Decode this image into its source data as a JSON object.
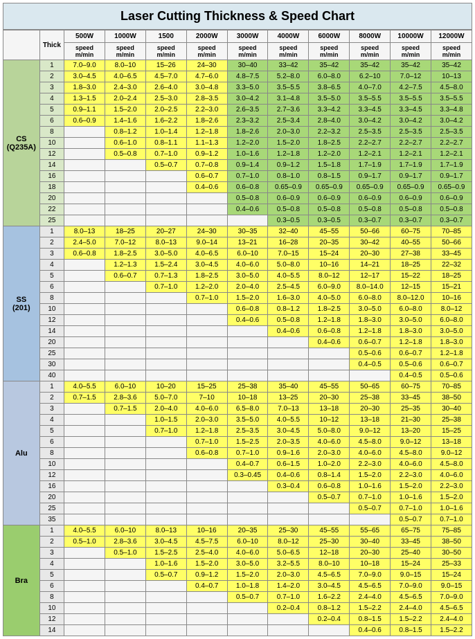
{
  "title": "Laser Cutting Thickness & Speed Chart",
  "thick_label": "Thick",
  "sub_label": "speed m/min",
  "powers": [
    "500W",
    "1000W",
    "1500",
    "2000W",
    "3000W",
    "4000W",
    "6000W",
    "8000W",
    "10000W",
    "12000W"
  ],
  "colors": {
    "title_bg": "#dae8ef",
    "mat_cs": "#b8d49a",
    "mat_ss": "#a6c2e0",
    "mat_alu": "#b8c8e0",
    "mat_bra": "#9acd6e",
    "thick_cs": "#d9e8c8",
    "thick_ss": "#e8e8e8",
    "thick_alu": "#e8e8e8",
    "thick_bra": "#e8e8e8",
    "fill_yellow": "#ffff66",
    "fill_green": "#a8d878",
    "fill_empty": "#f5f5f5"
  },
  "materials": [
    {
      "name": "CS (Q235A)",
      "mat_bg": "#b8d49a",
      "thick_bg": "#d9e8c8",
      "default_fill": "green",
      "yellow_cols": [
        0,
        1,
        2,
        3
      ],
      "rows": [
        {
          "t": "1",
          "v": [
            "7.0–9.0",
            "8.0–10",
            "15–26",
            "24–30",
            "30–40",
            "33–42",
            "35–42",
            "35–42",
            "35–42",
            "35–42"
          ]
        },
        {
          "t": "2",
          "v": [
            "3.0–4.5",
            "4.0–6.5",
            "4.5–7.0",
            "4.7–6.0",
            "4.8–7.5",
            "5.2–8.0",
            "6.0–8.0",
            "6.2–10",
            "7.0–12",
            "10–13"
          ]
        },
        {
          "t": "3",
          "v": [
            "1.8–3.0",
            "2.4–3.0",
            "2.6–4.0",
            "3.0–4.8",
            "3.3–5.0",
            "3.5–5.5",
            "3.8–6.5",
            "4.0–7.0",
            "4.2–7.5",
            "4.5–8.0"
          ]
        },
        {
          "t": "4",
          "v": [
            "1.3–1.5",
            "2.0–2.4",
            "2.5–3.0",
            "2.8–3.5",
            "3.0–4.2",
            "3.1–4.8",
            "3.5–5.0",
            "3.5–5.5",
            "3.5–5.5",
            "3.5–5.5"
          ]
        },
        {
          "t": "5",
          "v": [
            "0.9–1.1",
            "1.5–2.0",
            "2.0–2.5",
            "2.2–3.0",
            "2.6–3.5",
            "2.7–3.6",
            "3.3–4.2",
            "3.3–4.5",
            "3.3–4.5",
            "3.3–4.8"
          ]
        },
        {
          "t": "6",
          "v": [
            "0.6–0.9",
            "1.4–1.6",
            "1.6–2.2",
            "1.8–2.6",
            "2.3–3.2",
            "2.5–3.4",
            "2.8–4.0",
            "3.0–4.2",
            "3.0–4.2",
            "3.0–4.2"
          ]
        },
        {
          "t": "8",
          "v": [
            "",
            "0.8–1.2",
            "1.0–1.4",
            "1.2–1.8",
            "1.8–2.6",
            "2.0–3.0",
            "2.2–3.2",
            "2.5–3.5",
            "2.5–3.5",
            "2.5–3.5"
          ]
        },
        {
          "t": "10",
          "v": [
            "",
            "0.6–1.0",
            "0.8–1.1",
            "1.1–1.3",
            "1.2–2.0",
            "1.5–2.0",
            "1.8–2.5",
            "2.2–2.7",
            "2.2–2.7",
            "2.2–2.7"
          ]
        },
        {
          "t": "12",
          "v": [
            "",
            "0.5–0.8",
            "0.7–1.0",
            "0.9–1.2",
            "1.0–1.6",
            "1.2–1.8",
            "1.2–2.0",
            "1.2–2.1",
            "1.2–2.1",
            "1.2–2.1"
          ]
        },
        {
          "t": "14",
          "v": [
            "",
            "",
            "0.5–0.7",
            "0.7–0.8",
            "0.9–1.4",
            "0.9–1.2",
            "1.5–1.8",
            "1.7–1.9",
            "1.7–1.9",
            "1.7–1.9"
          ]
        },
        {
          "t": "16",
          "v": [
            "",
            "",
            "",
            "0.6–0.7",
            "0.7–1.0",
            "0.8–1.0",
            "0.8–1.5",
            "0.9–1.7",
            "0.9–1.7",
            "0.9–1.7"
          ]
        },
        {
          "t": "18",
          "v": [
            "",
            "",
            "",
            "0.4–0.6",
            "0.6–0.8",
            "0.65–0.9",
            "0.65–0.9",
            "0.65–0.9",
            "0.65–0.9",
            "0.65–0.9"
          ]
        },
        {
          "t": "20",
          "v": [
            "",
            "",
            "",
            "",
            "0.5–0.8",
            "0.6–0.9",
            "0.6–0.9",
            "0.6–0.9",
            "0.6–0.9",
            "0.6–0.9"
          ]
        },
        {
          "t": "22",
          "v": [
            "",
            "",
            "",
            "",
            "0.4–0.6",
            "0.5–0.8",
            "0.5–0.8",
            "0.5–0.8",
            "0.5–0.8",
            "0.5–0.8"
          ]
        },
        {
          "t": "25",
          "v": [
            "",
            "",
            "",
            "",
            "",
            "0.3–0.5",
            "0.3–0.5",
            "0.3–0.7",
            "0.3–0.7",
            "0.3–0.7"
          ]
        }
      ]
    },
    {
      "name": "SS (201)",
      "mat_bg": "#a6c2e0",
      "thick_bg": "#e8e8e8",
      "default_fill": "yellow",
      "rows": [
        {
          "t": "1",
          "v": [
            "8.0–13",
            "18–25",
            "20–27",
            "24–30",
            "30–35",
            "32–40",
            "45–55",
            "50–66",
            "60–75",
            "70–85"
          ]
        },
        {
          "t": "2",
          "v": [
            "2.4–5.0",
            "7.0–12",
            "8.0–13",
            "9.0–14",
            "13–21",
            "16–28",
            "20–35",
            "30–42",
            "40–55",
            "50–66"
          ]
        },
        {
          "t": "3",
          "v": [
            "0.6–0.8",
            "1.8–2.5",
            "3.0–5.0",
            "4.0–6.5",
            "6.0–10",
            "7.0–15",
            "15–24",
            "20–30",
            "27–38",
            "33–45"
          ]
        },
        {
          "t": "4",
          "v": [
            "",
            "1.2–1.3",
            "1.5–2.4",
            "3.0–4.5",
            "4.0–6.0",
            "5.0–8.0",
            "10–16",
            "14–21",
            "18–25",
            "22–32"
          ]
        },
        {
          "t": "5",
          "v": [
            "",
            "0.6–0.7",
            "0.7–1.3",
            "1.8–2.5",
            "3.0–5.0",
            "4.0–5.5",
            "8.0–12",
            "12–17",
            "15–22",
            "18–25"
          ]
        },
        {
          "t": "6",
          "v": [
            "",
            "",
            "0.7–1.0",
            "1.2–2.0",
            "2.0–4.0",
            "2.5–4.5",
            "6.0–9.0",
            "8.0–14.0",
            "12–15",
            "15–21"
          ]
        },
        {
          "t": "8",
          "v": [
            "",
            "",
            "",
            "0.7–1.0",
            "1.5–2.0",
            "1.6–3.0",
            "4.0–5.0",
            "6.0–8.0",
            "8.0–12.0",
            "10–16"
          ]
        },
        {
          "t": "10",
          "v": [
            "",
            "",
            "",
            "",
            "0.6–0.8",
            "0.8–1.2",
            "1.8–2.5",
            "3.0–5.0",
            "6.0–8.0",
            "8.0–12"
          ]
        },
        {
          "t": "12",
          "v": [
            "",
            "",
            "",
            "",
            "0.4–0.6",
            "0.5–0.8",
            "1.2–1.8",
            "1.8–3.0",
            "3.0–5.0",
            "6.0–8.0"
          ]
        },
        {
          "t": "14",
          "v": [
            "",
            "",
            "",
            "",
            "",
            "0.4–0.6",
            "0.6–0.8",
            "1.2–1.8",
            "1.8–3.0",
            "3.0–5.0"
          ]
        },
        {
          "t": "20",
          "v": [
            "",
            "",
            "",
            "",
            "",
            "",
            "0.4–0.6",
            "0.6–0.7",
            "1.2–1.8",
            "1.8–3.0"
          ]
        },
        {
          "t": "25",
          "v": [
            "",
            "",
            "",
            "",
            "",
            "",
            "",
            "0.5–0.6",
            "0.6–0.7",
            "1.2–1.8"
          ]
        },
        {
          "t": "30",
          "v": [
            "",
            "",
            "",
            "",
            "",
            "",
            "",
            "0.4–0.5",
            "0.5–0.6",
            "0.6–0.7"
          ]
        },
        {
          "t": "40",
          "v": [
            "",
            "",
            "",
            "",
            "",
            "",
            "",
            "",
            "0.4–0.5",
            "0.5–0.6"
          ]
        }
      ]
    },
    {
      "name": "Alu",
      "mat_bg": "#b8c8e0",
      "thick_bg": "#e8e8e8",
      "default_fill": "yellow",
      "rows": [
        {
          "t": "1",
          "v": [
            "4.0–5.5",
            "6.0–10",
            "10–20",
            "15–25",
            "25–38",
            "35–40",
            "45–55",
            "50–65",
            "60–75",
            "70–85"
          ]
        },
        {
          "t": "2",
          "v": [
            "0.7–1.5",
            "2.8–3.6",
            "5.0–7.0",
            "7–10",
            "10–18",
            "13–25",
            "20–30",
            "25–38",
            "33–45",
            "38–50"
          ]
        },
        {
          "t": "3",
          "v": [
            "",
            "0.7–1.5",
            "2.0–4.0",
            "4.0–6.0",
            "6.5–8.0",
            "7.0–13",
            "13–18",
            "20–30",
            "25–35",
            "30–40"
          ]
        },
        {
          "t": "4",
          "v": [
            "",
            "",
            "1.0–1.5",
            "2.0–3.0",
            "3.5–5.0",
            "4.0–5.5",
            "10–12",
            "13–18",
            "21–30",
            "25–38"
          ]
        },
        {
          "t": "5",
          "v": [
            "",
            "",
            "0.7–1.0",
            "1.2–1.8",
            "2.5–3.5",
            "3.0–4.5",
            "5.0–8.0",
            "9.0–12",
            "13–20",
            "15–25"
          ]
        },
        {
          "t": "6",
          "v": [
            "",
            "",
            "",
            "0.7–1.0",
            "1.5–2.5",
            "2.0–3.5",
            "4.0–6.0",
            "4.5–8.0",
            "9.0–12",
            "13–18"
          ]
        },
        {
          "t": "8",
          "v": [
            "",
            "",
            "",
            "0.6–0.8",
            "0.7–1.0",
            "0.9–1.6",
            "2.0–3.0",
            "4.0–6.0",
            "4.5–8.0",
            "9.0–12"
          ]
        },
        {
          "t": "10",
          "v": [
            "",
            "",
            "",
            "",
            "0.4–0.7",
            "0.6–1.5",
            "1.0–2.0",
            "2.2–3.0",
            "4.0–6.0",
            "4.5–8.0"
          ]
        },
        {
          "t": "12",
          "v": [
            "",
            "",
            "",
            "",
            "0.3–0.45",
            "0.4–0.6",
            "0.8–1.4",
            "1.5–2.0",
            "2.2–3.0",
            "4.0–6.0"
          ]
        },
        {
          "t": "16",
          "v": [
            "",
            "",
            "",
            "",
            "",
            "0.3–0.4",
            "0.6–0.8",
            "1.0–1.6",
            "1.5–2.0",
            "2.2–3.0"
          ]
        },
        {
          "t": "20",
          "v": [
            "",
            "",
            "",
            "",
            "",
            "",
            "0.5–0.7",
            "0.7–1.0",
            "1.0–1.6",
            "1.5–2.0"
          ]
        },
        {
          "t": "25",
          "v": [
            "",
            "",
            "",
            "",
            "",
            "",
            "",
            "0.5–0.7",
            "0.7–1.0",
            "1.0–1.6"
          ]
        },
        {
          "t": "35",
          "v": [
            "",
            "",
            "",
            "",
            "",
            "",
            "",
            "",
            "0.5–0.7",
            "0.7–1.0"
          ]
        }
      ]
    },
    {
      "name": "Bra",
      "mat_bg": "#9acd6e",
      "thick_bg": "#e8e8e8",
      "default_fill": "yellow",
      "rows": [
        {
          "t": "1",
          "v": [
            "4.0–5.5",
            "6.0–10",
            "8.0–13",
            "10–16",
            "20–35",
            "25–30",
            "45–55",
            "55–65",
            "65–75",
            "75–85"
          ]
        },
        {
          "t": "2",
          "v": [
            "0.5–1.0",
            "2.8–3.6",
            "3.0–4.5",
            "4.5–7.5",
            "6.0–10",
            "8.0–12",
            "25–30",
            "30–40",
            "33–45",
            "38–50"
          ]
        },
        {
          "t": "3",
          "v": [
            "",
            "0.5–1.0",
            "1.5–2.5",
            "2.5–4.0",
            "4.0–6.0",
            "5.0–6.5",
            "12–18",
            "20–30",
            "25–40",
            "30–50"
          ]
        },
        {
          "t": "4",
          "v": [
            "",
            "",
            "1.0–1.6",
            "1.5–2.0",
            "3.0–5.0",
            "3.2–5.5",
            "8.0–10",
            "10–18",
            "15–24",
            "25–33"
          ]
        },
        {
          "t": "5",
          "v": [
            "",
            "",
            "0.5–0.7",
            "0.9–1.2",
            "1.5–2.0",
            "2.0–3.0",
            "4.5–6.5",
            "7.0–9.0",
            "9.0–15",
            "15–24"
          ]
        },
        {
          "t": "6",
          "v": [
            "",
            "",
            "",
            "0.4–0.7",
            "1.0–1.8",
            "1.4–2.0",
            "3.0–4.5",
            "4.5–6.5",
            "7.0–9.0",
            "9.0–15"
          ]
        },
        {
          "t": "8",
          "v": [
            "",
            "",
            "",
            "",
            "0.5–0.7",
            "0.7–1.0",
            "1.6–2.2",
            "2.4–4.0",
            "4.5–6.5",
            "7.0–9.0"
          ]
        },
        {
          "t": "10",
          "v": [
            "",
            "",
            "",
            "",
            "",
            "0.2–0.4",
            "0.8–1.2",
            "1.5–2.2",
            "2.4–4.0",
            "4.5–6.5"
          ]
        },
        {
          "t": "12",
          "v": [
            "",
            "",
            "",
            "",
            "",
            "",
            "0.2–0.4",
            "0.8–1.5",
            "1.5–2.2",
            "2.4–4.0"
          ]
        },
        {
          "t": "14",
          "v": [
            "",
            "",
            "",
            "",
            "",
            "",
            "",
            "0.4–0.6",
            "0.8–1.5",
            "1.5–2.2"
          ]
        }
      ]
    }
  ]
}
